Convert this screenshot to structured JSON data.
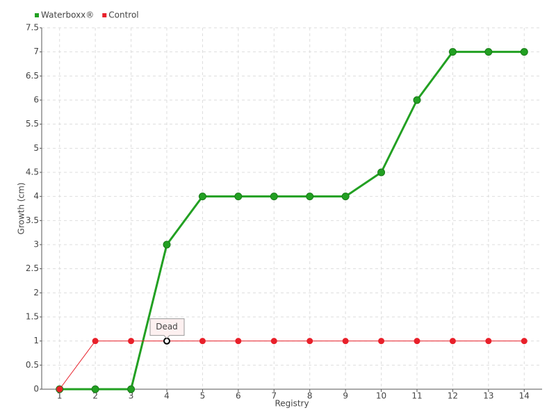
{
  "chart_data": {
    "type": "line",
    "x_label": "Registry",
    "y_label": "Growth (cm)",
    "categories": [
      "1",
      "2",
      "3",
      "4",
      "5",
      "6",
      "7",
      "8",
      "9",
      "10",
      "11",
      "12",
      "13",
      "14"
    ],
    "series": [
      {
        "name": "Waterboxx®",
        "color": "#22a022",
        "values": [
          0,
          0,
          0,
          3,
          4,
          4,
          4,
          4,
          4,
          4.5,
          6,
          7,
          7,
          7
        ]
      },
      {
        "name": "Control",
        "color": "#e8202a",
        "values": [
          0,
          1,
          1,
          1,
          1,
          1,
          1,
          1,
          1,
          1,
          1,
          1,
          1,
          1
        ]
      }
    ],
    "annotations": [
      {
        "text": "Dead",
        "x": "4"
      }
    ],
    "ylim": [
      0,
      7.5
    ],
    "yticks": [
      0,
      0.5,
      1,
      1.5,
      2,
      2.5,
      3,
      3.5,
      4,
      4.5,
      5,
      5.5,
      6,
      6.5,
      7,
      7.5
    ],
    "grid": true,
    "legend": "top-left"
  }
}
